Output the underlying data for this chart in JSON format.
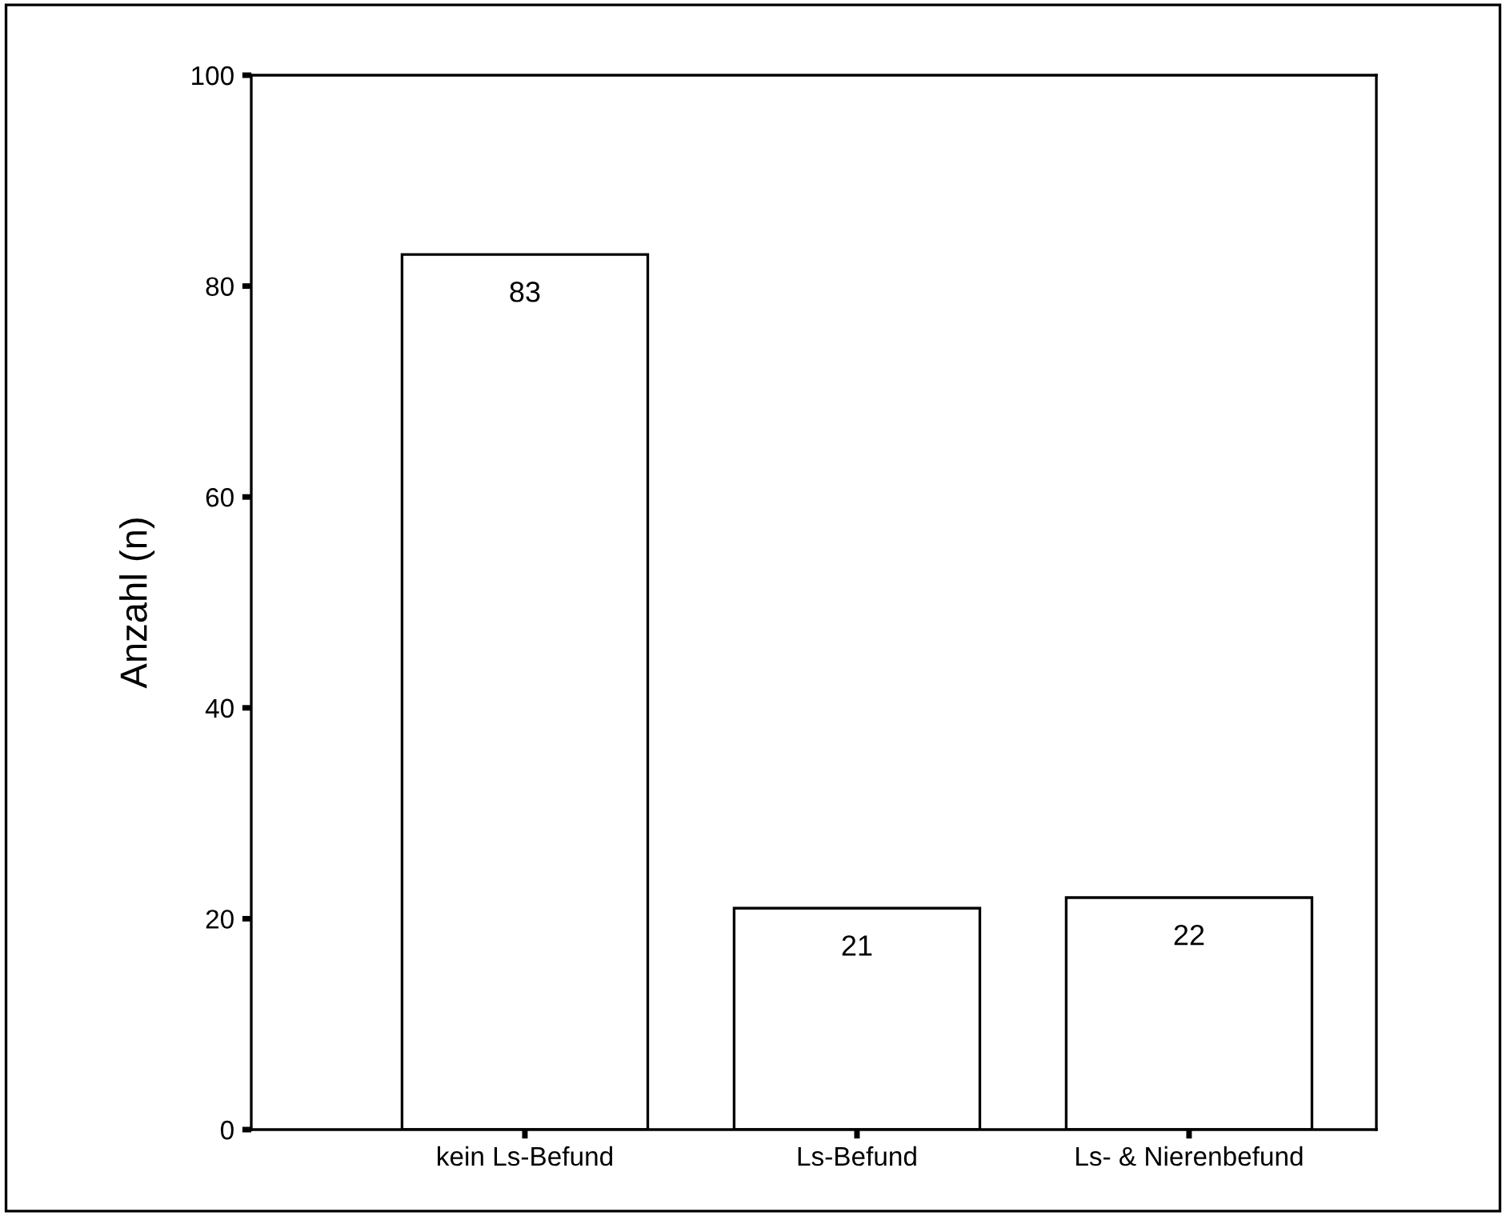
{
  "chart_data": {
    "type": "bar",
    "ylabel": "Anzahl (n)",
    "categories": [
      "kein Ls-Befund",
      "Ls-Befund",
      "Ls- & Nierenbefund"
    ],
    "values": [
      83,
      21,
      22
    ],
    "color": "#ffffff",
    "ylim": [
      0,
      100
    ],
    "yticks": [
      0,
      20,
      40,
      60,
      80,
      100
    ],
    "grid": false,
    "data_labels": true
  }
}
